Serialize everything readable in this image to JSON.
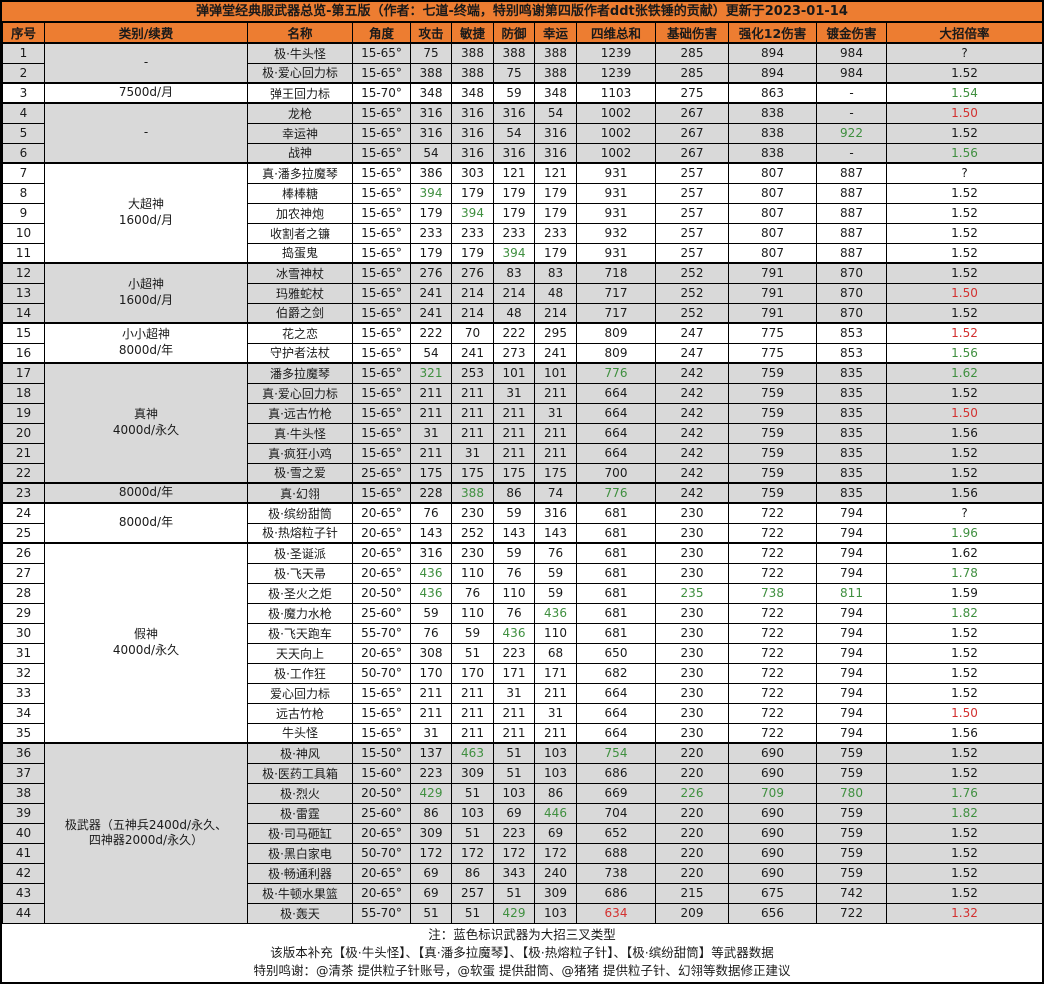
{
  "title": "弹弹堂经典服武器总览-第五版（作者：七道-终端，特别鸣谢第四版作者ddt张铁锤的贡献）更新于2023-01-14",
  "columns": [
    "序号",
    "类别/续费",
    "名称",
    "角度",
    "攻击",
    "敏捷",
    "防御",
    "幸运",
    "四维总和",
    "基础伤害",
    "强化12伤害",
    "镀金伤害",
    "大招倍率"
  ],
  "colors": {
    "header_bg": "#ED7D31",
    "band_gray": "#D9D9D9",
    "band_white": "#FFFFFF",
    "blue_name_bg": "#8FAADC",
    "highlight_good_bg": "#C6EFCE",
    "highlight_good_text": "#3F8F3F",
    "highlight_bad_bg": "#FFC7CE",
    "highlight_bad_text": "#D3302F"
  },
  "notes": [
    "注：蓝色标识武器为大招三叉类型",
    "该版本补充【极·牛头怪】、【真·潘多拉魔琴】、【极·热熔粒子针】、【极·缤纷甜筒】等武器数据",
    "特别鸣谢：@清茶 提供粒子针账号，@软蛋 提供甜筒、@猪猪 提供粒子针、幻翎等数据修正建议"
  ],
  "rows": [
    {
      "i": 1,
      "cat": {
        "label": "-",
        "span": 2
      },
      "band": "g",
      "name": "极·牛头怪",
      "angle": "15-65°",
      "atk": "75",
      "agi": "388",
      "dfn": "388",
      "lck": "388",
      "sum": "1239",
      "base": "285",
      "e12": "894",
      "gold": "984",
      "ult": "?"
    },
    {
      "i": 2,
      "band": "g",
      "name": "极·爱心回力标",
      "angle": "15-65°",
      "atk": "388",
      "agi": "388",
      "dfn": "75",
      "lck": "388",
      "sum": "1239",
      "base": "285",
      "e12": "894",
      "gold": "984",
      "ult": "1.52"
    },
    {
      "i": 3,
      "cat": {
        "label": "7500d/月",
        "span": 1
      },
      "band": "w",
      "name": "弹王回力标",
      "angle": "15-70°",
      "atk": "348",
      "agi": "348",
      "dfn": "59",
      "lck": "348",
      "sum": "1103",
      "base": "275",
      "e12": "863",
      "gold": "-",
      "ult": "1.54",
      "ultc": "g"
    },
    {
      "i": 4,
      "cat": {
        "label": "-",
        "span": 3
      },
      "band": "g",
      "name": "龙枪",
      "angle": "15-65°",
      "atk": "316",
      "agi": "316",
      "dfn": "316",
      "lck": "54",
      "sum": "1002",
      "base": "267",
      "e12": "838",
      "gold": "-",
      "ult": "1.50",
      "ultc": "r"
    },
    {
      "i": 5,
      "band": "g",
      "name": "幸运神",
      "angle": "15-65°",
      "atk": "316",
      "agi": "316",
      "dfn": "54",
      "lck": "316",
      "sum": "1002",
      "base": "267",
      "e12": "838",
      "gold": "922",
      "hl": {
        "gold": "g"
      },
      "ult": "1.52"
    },
    {
      "i": 6,
      "band": "g",
      "name": "战神",
      "angle": "15-65°",
      "atk": "54",
      "agi": "316",
      "dfn": "316",
      "lck": "316",
      "sum": "1002",
      "base": "267",
      "e12": "838",
      "gold": "-",
      "ult": "1.56",
      "ultc": "g"
    },
    {
      "i": 7,
      "cat": {
        "label": "大超神\n1600d/月",
        "span": 5
      },
      "band": "w",
      "name": "真·潘多拉魔琴",
      "angle": "15-65°",
      "atk": "386",
      "agi": "303",
      "dfn": "121",
      "lck": "121",
      "sum": "931",
      "base": "257",
      "e12": "807",
      "gold": "887",
      "ult": "?"
    },
    {
      "i": 8,
      "band": "w",
      "name": "棒棒糖",
      "angle": "15-65°",
      "atk": "394",
      "agi": "179",
      "dfn": "179",
      "lck": "179",
      "sum": "931",
      "base": "257",
      "e12": "807",
      "gold": "887",
      "hl": {
        "atk": "g"
      },
      "ult": "1.52"
    },
    {
      "i": 9,
      "band": "w",
      "name": "加农神炮",
      "angle": "15-65°",
      "atk": "179",
      "agi": "394",
      "dfn": "179",
      "lck": "179",
      "sum": "931",
      "base": "257",
      "e12": "807",
      "gold": "887",
      "hl": {
        "agi": "g"
      },
      "ult": "1.52"
    },
    {
      "i": 10,
      "band": "w",
      "name": "收割者之镰",
      "angle": "15-65°",
      "atk": "233",
      "agi": "233",
      "dfn": "233",
      "lck": "233",
      "sum": "932",
      "base": "257",
      "e12": "807",
      "gold": "887",
      "ult": "1.52"
    },
    {
      "i": 11,
      "band": "w",
      "name": "捣蛋鬼",
      "angle": "15-65°",
      "atk": "179",
      "agi": "179",
      "dfn": "394",
      "lck": "179",
      "sum": "931",
      "base": "257",
      "e12": "807",
      "gold": "887",
      "hl": {
        "dfn": "g"
      },
      "ult": "1.52"
    },
    {
      "i": 12,
      "cat": {
        "label": "小超神\n1600d/月",
        "span": 3
      },
      "band": "g",
      "name": "冰雪神杖",
      "angle": "15-65°",
      "atk": "276",
      "agi": "276",
      "dfn": "83",
      "lck": "83",
      "sum": "718",
      "base": "252",
      "e12": "791",
      "gold": "870",
      "ult": "1.52"
    },
    {
      "i": 13,
      "band": "g",
      "name": "玛雅蛇杖",
      "angle": "15-65°",
      "atk": "241",
      "agi": "214",
      "dfn": "214",
      "lck": "48",
      "sum": "717",
      "base": "252",
      "e12": "791",
      "gold": "870",
      "ult": "1.50",
      "ultc": "r"
    },
    {
      "i": 14,
      "band": "g",
      "name": "伯爵之剑",
      "angle": "15-65°",
      "atk": "241",
      "agi": "214",
      "dfn": "48",
      "lck": "214",
      "sum": "717",
      "base": "252",
      "e12": "791",
      "gold": "870",
      "ult": "1.52"
    },
    {
      "i": 15,
      "cat": {
        "label": "小小超神\n8000d/年",
        "span": 2
      },
      "band": "w",
      "name": "花之恋",
      "angle": "15-65°",
      "atk": "222",
      "agi": "70",
      "dfn": "222",
      "lck": "295",
      "sum": "809",
      "base": "247",
      "e12": "775",
      "gold": "853",
      "ult": "1.52",
      "ultc": "r"
    },
    {
      "i": 16,
      "band": "w",
      "name": "守护者法杖",
      "angle": "15-65°",
      "atk": "54",
      "agi": "241",
      "dfn": "273",
      "lck": "241",
      "sum": "809",
      "base": "247",
      "e12": "775",
      "gold": "853",
      "ult": "1.56",
      "ultc": "g"
    },
    {
      "i": 17,
      "cat": {
        "label": "真神\n4000d/永久",
        "span": 6
      },
      "band": "g",
      "name": "潘多拉魔琴",
      "angle": "15-65°",
      "atk": "321",
      "agi": "253",
      "dfn": "101",
      "lck": "101",
      "sum": "776",
      "base": "242",
      "e12": "759",
      "gold": "835",
      "hl": {
        "atk": "g",
        "sum": "g"
      },
      "ult": "1.62",
      "ultc": "g"
    },
    {
      "i": 18,
      "band": "g",
      "name": "真·爱心回力标",
      "angle": "15-65°",
      "atk": "211",
      "agi": "211",
      "dfn": "31",
      "lck": "211",
      "sum": "664",
      "base": "242",
      "e12": "759",
      "gold": "835",
      "ult": "1.52"
    },
    {
      "i": 19,
      "band": "g",
      "name": "真·远古竹枪",
      "angle": "15-65°",
      "atk": "211",
      "agi": "211",
      "dfn": "211",
      "lck": "31",
      "sum": "664",
      "base": "242",
      "e12": "759",
      "gold": "835",
      "ult": "1.50",
      "ultc": "r"
    },
    {
      "i": 20,
      "band": "g",
      "name": "真·牛头怪",
      "angle": "15-65°",
      "atk": "31",
      "agi": "211",
      "dfn": "211",
      "lck": "211",
      "sum": "664",
      "base": "242",
      "e12": "759",
      "gold": "835",
      "ult": "1.56"
    },
    {
      "i": 21,
      "band": "g",
      "name": "真·疯狂小鸡",
      "angle": "15-65°",
      "atk": "211",
      "agi": "31",
      "dfn": "211",
      "lck": "211",
      "sum": "664",
      "base": "242",
      "e12": "759",
      "gold": "835",
      "ult": "1.52"
    },
    {
      "i": 22,
      "band": "g",
      "name": "极·雪之爱",
      "angle": "25-65°",
      "atk": "175",
      "agi": "175",
      "dfn": "175",
      "lck": "175",
      "sum": "700",
      "base": "242",
      "e12": "759",
      "gold": "835",
      "ult": "1.52"
    },
    {
      "i": 23,
      "cat": {
        "label": "8000d/年",
        "span": 1
      },
      "band": "g",
      "name": "真·幻翎",
      "angle": "15-65°",
      "atk": "228",
      "agi": "388",
      "dfn": "86",
      "lck": "74",
      "sum": "776",
      "base": "242",
      "e12": "759",
      "gold": "835",
      "hl": {
        "agi": "g",
        "sum": "g"
      },
      "ult": "1.56"
    },
    {
      "i": 24,
      "cat": {
        "label": "8000d/年",
        "span": 2
      },
      "band": "w",
      "name": "极·缤纷甜筒",
      "angle": "20-65°",
      "atk": "76",
      "agi": "230",
      "dfn": "59",
      "lck": "316",
      "sum": "681",
      "base": "230",
      "e12": "722",
      "gold": "794",
      "ult": "?"
    },
    {
      "i": 25,
      "band": "w",
      "blue": true,
      "name": "极·热熔粒子针",
      "angle": "20-65°",
      "atk": "143",
      "agi": "252",
      "dfn": "143",
      "lck": "143",
      "sum": "681",
      "base": "230",
      "e12": "722",
      "gold": "794",
      "ult": "1.96",
      "ultc": "g"
    },
    {
      "i": 26,
      "cat": {
        "label": "假神\n4000d/永久",
        "span": 10
      },
      "band": "w",
      "name": "极·圣诞派",
      "angle": "20-65°",
      "atk": "316",
      "agi": "230",
      "dfn": "59",
      "lck": "76",
      "sum": "681",
      "base": "230",
      "e12": "722",
      "gold": "794",
      "ult": "1.62"
    },
    {
      "i": 27,
      "band": "w",
      "blue": true,
      "name": "极·飞天帚",
      "angle": "20-65°",
      "atk": "436",
      "agi": "110",
      "dfn": "76",
      "lck": "59",
      "sum": "681",
      "base": "230",
      "e12": "722",
      "gold": "794",
      "hl": {
        "atk": "g"
      },
      "ult": "1.78",
      "ultc": "g"
    },
    {
      "i": 28,
      "band": "w",
      "blue": true,
      "name": "极·圣火之炬",
      "angle": "20-50°",
      "atk": "436",
      "agi": "76",
      "dfn": "110",
      "lck": "59",
      "sum": "681",
      "base": "235",
      "e12": "738",
      "gold": "811",
      "hl": {
        "atk": "g",
        "base": "g",
        "e12": "g",
        "gold": "g"
      },
      "ult": "1.59"
    },
    {
      "i": 29,
      "band": "w",
      "blue": true,
      "name": "极·魔力水枪",
      "angle": "25-60°",
      "atk": "59",
      "agi": "110",
      "dfn": "76",
      "lck": "436",
      "sum": "681",
      "base": "230",
      "e12": "722",
      "gold": "794",
      "hl": {
        "lck": "g"
      },
      "ult": "1.82",
      "ultc": "g"
    },
    {
      "i": 30,
      "band": "w",
      "name": "极·飞天跑车",
      "angle": "55-70°",
      "atk": "76",
      "agi": "59",
      "dfn": "436",
      "lck": "110",
      "sum": "681",
      "base": "230",
      "e12": "722",
      "gold": "794",
      "hl": {
        "dfn": "g"
      },
      "ult": "1.52"
    },
    {
      "i": 31,
      "band": "w",
      "name": "天天向上",
      "angle": "20-65°",
      "atk": "308",
      "agi": "51",
      "dfn": "223",
      "lck": "68",
      "sum": "650",
      "base": "230",
      "e12": "722",
      "gold": "794",
      "ult": "1.52"
    },
    {
      "i": 32,
      "band": "w",
      "name": "极·工作狂",
      "angle": "50-70°",
      "atk": "170",
      "agi": "170",
      "dfn": "171",
      "lck": "171",
      "sum": "682",
      "base": "230",
      "e12": "722",
      "gold": "794",
      "ult": "1.52"
    },
    {
      "i": 33,
      "band": "w",
      "name": "爱心回力标",
      "angle": "15-65°",
      "atk": "211",
      "agi": "211",
      "dfn": "31",
      "lck": "211",
      "sum": "664",
      "base": "230",
      "e12": "722",
      "gold": "794",
      "ult": "1.52"
    },
    {
      "i": 34,
      "band": "w",
      "name": "远古竹枪",
      "angle": "15-65°",
      "atk": "211",
      "agi": "211",
      "dfn": "211",
      "lck": "31",
      "sum": "664",
      "base": "230",
      "e12": "722",
      "gold": "794",
      "ult": "1.50",
      "ultc": "r"
    },
    {
      "i": 35,
      "band": "w",
      "name": "牛头怪",
      "angle": "15-65°",
      "atk": "31",
      "agi": "211",
      "dfn": "211",
      "lck": "211",
      "sum": "664",
      "base": "230",
      "e12": "722",
      "gold": "794",
      "ult": "1.56"
    },
    {
      "i": 36,
      "cat": {
        "label": "极武器（五神兵2400d/永久、\n四神器2000d/永久）",
        "span": 9
      },
      "band": "g",
      "name": "极·神风",
      "angle": "15-50°",
      "atk": "137",
      "agi": "463",
      "dfn": "51",
      "lck": "103",
      "sum": "754",
      "base": "220",
      "e12": "690",
      "gold": "759",
      "hl": {
        "agi": "g",
        "sum": "g"
      },
      "ult": "1.52"
    },
    {
      "i": 37,
      "band": "g",
      "name": "极·医药工具箱",
      "angle": "15-60°",
      "atk": "223",
      "agi": "309",
      "dfn": "51",
      "lck": "103",
      "sum": "686",
      "base": "220",
      "e12": "690",
      "gold": "759",
      "ult": "1.52"
    },
    {
      "i": 38,
      "band": "g",
      "blue": true,
      "name": "极·烈火",
      "angle": "20-50°",
      "atk": "429",
      "agi": "51",
      "dfn": "103",
      "lck": "86",
      "sum": "669",
      "base": "226",
      "e12": "709",
      "gold": "780",
      "hl": {
        "atk": "g",
        "base": "g",
        "e12": "g",
        "gold": "g"
      },
      "ult": "1.76",
      "ultc": "g"
    },
    {
      "i": 39,
      "band": "g",
      "blue": true,
      "name": "极·雷霆",
      "angle": "25-60°",
      "atk": "86",
      "agi": "103",
      "dfn": "69",
      "lck": "446",
      "sum": "704",
      "base": "220",
      "e12": "690",
      "gold": "759",
      "hl": {
        "lck": "g"
      },
      "ult": "1.82",
      "ultc": "g"
    },
    {
      "i": 40,
      "band": "g",
      "name": "极·司马砸缸",
      "angle": "20-65°",
      "atk": "309",
      "agi": "51",
      "dfn": "223",
      "lck": "69",
      "sum": "652",
      "base": "220",
      "e12": "690",
      "gold": "759",
      "ult": "1.52"
    },
    {
      "i": 41,
      "band": "g",
      "name": "极·黑白家电",
      "angle": "50-70°",
      "atk": "172",
      "agi": "172",
      "dfn": "172",
      "lck": "172",
      "sum": "688",
      "base": "220",
      "e12": "690",
      "gold": "759",
      "ult": "1.52"
    },
    {
      "i": 42,
      "band": "g",
      "blue": true,
      "name": "极·畅通利器",
      "angle": "20-65°",
      "atk": "69",
      "agi": "86",
      "dfn": "343",
      "lck": "240",
      "sum": "738",
      "base": "220",
      "e12": "690",
      "gold": "759",
      "ult": "1.52"
    },
    {
      "i": 43,
      "band": "g",
      "blue": true,
      "name": "极·牛顿水果篮",
      "angle": "20-65°",
      "atk": "69",
      "agi": "257",
      "dfn": "51",
      "lck": "309",
      "sum": "686",
      "base": "215",
      "e12": "675",
      "gold": "742",
      "ult": "1.52"
    },
    {
      "i": 44,
      "band": "g",
      "name": "极·轰天",
      "angle": "55-70°",
      "atk": "51",
      "agi": "51",
      "dfn": "429",
      "lck": "103",
      "sum": "634",
      "base": "209",
      "e12": "656",
      "gold": "722",
      "hl": {
        "dfn": "g",
        "sum": "r"
      },
      "ult": "1.32",
      "ultc": "r"
    }
  ]
}
